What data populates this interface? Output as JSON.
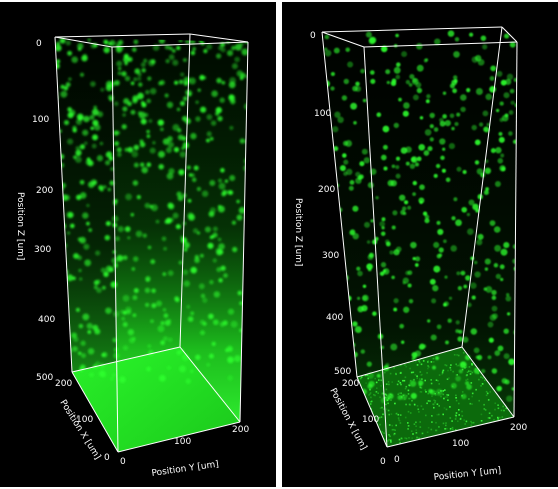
{
  "panels": [
    {
      "axis_labels": {
        "z": "Position Z [um]",
        "x": "Position X [um]",
        "y": "Position Y [um]"
      },
      "z_ticks": [
        "0",
        "100",
        "200",
        "300",
        "400",
        "500"
      ],
      "x_ticks": [
        "200",
        "100",
        "0"
      ],
      "y_ticks": [
        "0",
        "100",
        "200"
      ],
      "rendering": "bright green haze toward the bottom"
    },
    {
      "axis_labels": {
        "z": "Position Z [um]",
        "x": "Position X [um]",
        "y": "Position Y [um]"
      },
      "z_ticks": [
        "0",
        "100",
        "200",
        "300",
        "400",
        "500"
      ],
      "x_ticks": [
        "200",
        "100",
        "0"
      ],
      "y_ticks": [
        "0",
        "100",
        "200"
      ],
      "rendering": "sparse nuclei with speckled green floor"
    }
  ],
  "colors": {
    "background": "#000000",
    "fluorescence": "#2dff2d",
    "box_lines": "#ffffff"
  }
}
